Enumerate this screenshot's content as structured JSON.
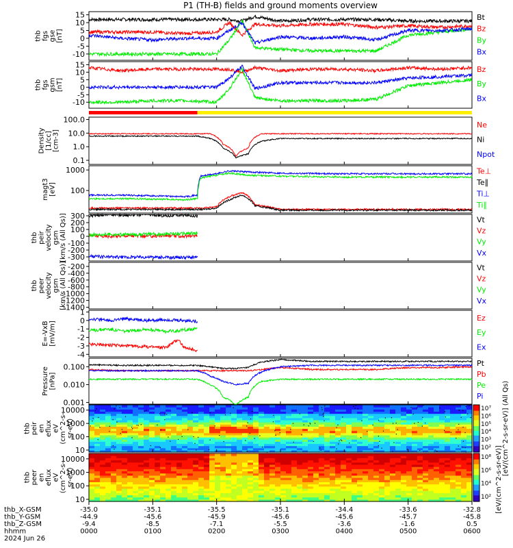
{
  "title": "P1 (TH-B) fields and ground moments overview",
  "colors": {
    "black": "#000000",
    "red": "#ff0000",
    "green": "#00ee00",
    "blue": "#0000ff",
    "yellow": "#ffee00"
  },
  "chart_data": [
    {
      "id": "fgs-gse",
      "type": "line",
      "ylabel": [
        "thb",
        "fgs",
        "gse",
        "[nT]"
      ],
      "yticks": [
        "15",
        "10",
        "5",
        "0",
        "-5",
        "-10"
      ],
      "ylim": [
        -14,
        17
      ],
      "log": false,
      "series": [
        {
          "name": "Bt",
          "color": "black",
          "x": [
            0,
            5,
            10,
            15,
            20,
            22,
            24,
            26,
            30,
            35,
            40,
            45,
            50,
            55,
            60
          ],
          "y": [
            12,
            12,
            12,
            12,
            12,
            12,
            11,
            14,
            11,
            12,
            12,
            12,
            11,
            11,
            11
          ]
        },
        {
          "name": "Bz",
          "color": "red",
          "x": [
            0,
            5,
            10,
            15,
            20,
            22,
            24,
            26,
            30,
            35,
            40,
            45,
            50,
            55,
            60
          ],
          "y": [
            4,
            4,
            4,
            3,
            4,
            10,
            2,
            9,
            8,
            9,
            9,
            7,
            8,
            7,
            8
          ]
        },
        {
          "name": "By",
          "color": "green",
          "x": [
            0,
            5,
            10,
            15,
            20,
            22,
            24,
            26,
            30,
            35,
            40,
            45,
            50,
            55,
            60
          ],
          "y": [
            -10,
            -10,
            -10,
            -10,
            -10,
            -1,
            11,
            -6,
            -7,
            -8,
            -8,
            -8,
            2,
            4,
            6
          ]
        },
        {
          "name": "Bx",
          "color": "blue",
          "x": [
            0,
            5,
            10,
            15,
            20,
            22,
            24,
            26,
            30,
            35,
            40,
            45,
            50,
            55,
            60
          ],
          "y": [
            2,
            0,
            -1,
            0,
            0,
            5,
            10,
            -3,
            1,
            0,
            1,
            -1,
            5,
            5,
            6
          ]
        }
      ]
    },
    {
      "id": "fgs-gsm",
      "type": "line",
      "ylabel": [
        "thb",
        "fgs",
        "gsm",
        "[nT]"
      ],
      "yticks": [
        "15",
        "10",
        "5",
        "0",
        "-5",
        "-10"
      ],
      "ylim": [
        -14,
        17
      ],
      "log": false,
      "series": [
        {
          "name": "Bz",
          "color": "red",
          "x": [
            0,
            5,
            10,
            15,
            20,
            22,
            24,
            26,
            30,
            35,
            40,
            45,
            50,
            55,
            60
          ],
          "y": [
            13,
            11,
            12,
            12,
            12,
            12,
            10,
            13,
            11,
            12,
            12,
            11,
            13,
            12,
            13
          ]
        },
        {
          "name": "By",
          "color": "green",
          "x": [
            0,
            5,
            10,
            15,
            20,
            22,
            24,
            26,
            30,
            35,
            40,
            45,
            50,
            55,
            60
          ],
          "y": [
            -10,
            -10,
            -9,
            -9,
            -10,
            -1,
            12,
            -7,
            -9,
            -9,
            -9,
            -8,
            1,
            3,
            5
          ]
        },
        {
          "name": "Bx",
          "color": "blue",
          "x": [
            0,
            5,
            10,
            15,
            20,
            22,
            24,
            26,
            30,
            35,
            40,
            45,
            50,
            55,
            60
          ],
          "y": [
            0,
            0,
            0,
            0,
            0,
            6,
            14,
            -1,
            3,
            3,
            3,
            3,
            6,
            7,
            8
          ]
        }
      ]
    },
    {
      "id": "density",
      "type": "line",
      "ylabel": [
        "Density",
        "[1/cc]",
        "[cm-3]"
      ],
      "yticks": [
        "100.0",
        "10.0",
        "1.0",
        "0.1"
      ],
      "ylim": [
        0.05,
        150
      ],
      "log": true,
      "series": [
        {
          "name": "Ne",
          "color": "red",
          "x": [
            0,
            5,
            10,
            15,
            17,
            19,
            21,
            23,
            25,
            27,
            30,
            35,
            40,
            45,
            50,
            55,
            60
          ],
          "y": [
            9,
            9,
            9,
            9,
            9,
            9,
            1.5,
            0.2,
            0.8,
            9,
            9,
            9,
            9,
            9,
            9,
            9,
            9
          ]
        },
        {
          "name": "Ni",
          "color": "black",
          "x": [
            0,
            5,
            10,
            15,
            17,
            19,
            21,
            23,
            25,
            27,
            30,
            35,
            40,
            45,
            50,
            55,
            60
          ],
          "y": [
            6,
            6,
            6,
            6,
            6,
            4,
            0.8,
            0.15,
            0.3,
            2.5,
            4,
            4,
            4,
            4,
            4,
            4,
            4
          ]
        },
        {
          "name": "Npot",
          "color": "blue",
          "x": [],
          "y": []
        }
      ]
    },
    {
      "id": "temperature",
      "type": "line",
      "ylabel": [
        "magt3",
        "[eV]"
      ],
      "yticks": [
        "1000",
        "100"
      ],
      "ylim": [
        8,
        1600
      ],
      "log": true,
      "series": [
        {
          "name": "Te⊥",
          "color": "red",
          "x": [
            0,
            10,
            18,
            20,
            22,
            24,
            26,
            30,
            40,
            50,
            60
          ],
          "y": [
            14,
            14,
            14,
            16,
            50,
            80,
            20,
            12,
            12,
            12,
            12
          ]
        },
        {
          "name": "Te∥",
          "color": "black",
          "x": [
            0,
            10,
            18,
            20,
            22,
            24,
            26,
            30,
            40,
            50,
            60
          ],
          "y": [
            12,
            12,
            12,
            14,
            35,
            60,
            18,
            11,
            11,
            11,
            11
          ]
        },
        {
          "name": "Ti⊥",
          "color": "blue",
          "x": [
            0,
            5,
            10,
            15,
            17,
            17.5,
            20,
            22,
            25,
            30,
            40,
            50,
            60
          ],
          "y": [
            60,
            60,
            55,
            50,
            60,
            500,
            650,
            900,
            800,
            700,
            650,
            650,
            650
          ]
        },
        {
          "name": "Ti∥",
          "color": "green",
          "x": [
            0,
            5,
            10,
            15,
            17,
            17.5,
            20,
            22,
            25,
            30,
            40,
            50,
            60
          ],
          "y": [
            40,
            40,
            38,
            35,
            40,
            400,
            550,
            700,
            550,
            500,
            450,
            450,
            450
          ]
        }
      ]
    },
    {
      "id": "ion-velocity",
      "type": "line",
      "ylabel": [
        "thb",
        "peir",
        "velocity",
        "gsm",
        "[km/s (All Qs)]"
      ],
      "yticks": [
        "300",
        "200",
        "100",
        "0",
        "-100",
        "-200",
        "-300"
      ],
      "ylim": [
        -360,
        320
      ],
      "log": false,
      "series": [
        {
          "name": "Vt",
          "color": "black",
          "x": [
            0,
            3,
            6,
            9,
            12,
            15,
            17
          ],
          "y": [
            300,
            320,
            310,
            320,
            300,
            310,
            300
          ]
        },
        {
          "name": "Vz",
          "color": "red",
          "x": [
            0,
            3,
            6,
            9,
            12,
            15,
            17
          ],
          "y": [
            10,
            0,
            10,
            0,
            10,
            0,
            10
          ]
        },
        {
          "name": "Vy",
          "color": "green",
          "x": [
            0,
            3,
            6,
            9,
            12,
            15,
            17
          ],
          "y": [
            20,
            30,
            25,
            30,
            35,
            40,
            45
          ]
        },
        {
          "name": "Vx",
          "color": "blue",
          "x": [
            0,
            3,
            6,
            9,
            12,
            15,
            17
          ],
          "y": [
            -290,
            -300,
            -305,
            -300,
            -310,
            -305,
            -305
          ]
        }
      ]
    },
    {
      "id": "electron-velocity",
      "type": "line",
      "ylabel": [
        "thb",
        "peer",
        "velocity",
        "gsm",
        "[km/s (All Qs)]"
      ],
      "yticks": [
        "-200",
        "-400",
        "-600",
        "-800",
        "-1000",
        "-1200",
        "-1400"
      ],
      "ylim": [
        -1450,
        -80
      ],
      "log": false,
      "series": [
        {
          "name": "Vt",
          "color": "black",
          "x": [],
          "y": []
        },
        {
          "name": "Vz",
          "color": "red",
          "x": [],
          "y": []
        },
        {
          "name": "Vy",
          "color": "green",
          "x": [],
          "y": []
        },
        {
          "name": "Vx",
          "color": "blue",
          "x": [],
          "y": []
        }
      ]
    },
    {
      "id": "efield",
      "type": "line",
      "ylabel": [
        "E=-VxB",
        "[mV/m]"
      ],
      "yticks": [
        "1",
        "0",
        "-1",
        "-2",
        "-3",
        "-4"
      ],
      "ylim": [
        -4.3,
        1.2
      ],
      "log": false,
      "series": [
        {
          "name": "Ez",
          "color": "red",
          "x": [
            0,
            3,
            6,
            9,
            12,
            14,
            15,
            17
          ],
          "y": [
            -2.8,
            -2.9,
            -3.0,
            -3.1,
            -3.2,
            -2.2,
            -3.3,
            -3.5
          ]
        },
        {
          "name": "Ey",
          "color": "green",
          "x": [
            0,
            3,
            6,
            9,
            12,
            14,
            15,
            17
          ],
          "y": [
            -1.2,
            -1.0,
            -1.3,
            -1.0,
            -1.3,
            -1.2,
            -1.1,
            -1.0
          ]
        },
        {
          "name": "Ex",
          "color": "blue",
          "x": [
            0,
            3,
            6,
            9,
            12,
            14,
            15,
            17
          ],
          "y": [
            0.2,
            0.0,
            0.2,
            0.0,
            0.1,
            0.0,
            0.0,
            -0.1
          ]
        }
      ]
    },
    {
      "id": "pressure",
      "type": "line",
      "ylabel": [
        "Pressure",
        "[nPa]"
      ],
      "yticks": [
        "0.100",
        "0.010",
        "0.001"
      ],
      "ylim": [
        0.0008,
        0.3
      ],
      "log": true,
      "series": [
        {
          "name": "Pt",
          "color": "black",
          "x": [
            0,
            5,
            10,
            15,
            17,
            19,
            21,
            23,
            25,
            27,
            30,
            35,
            40,
            45,
            50,
            55,
            60
          ],
          "y": [
            0.13,
            0.12,
            0.12,
            0.12,
            0.12,
            0.1,
            0.08,
            0.08,
            0.09,
            0.18,
            0.25,
            0.2,
            0.2,
            0.2,
            0.2,
            0.2,
            0.2
          ]
        },
        {
          "name": "Pb",
          "color": "red",
          "x": [
            0,
            5,
            10,
            15,
            17,
            19,
            21,
            23,
            25,
            27,
            30,
            35,
            40,
            45,
            50,
            55,
            60
          ],
          "y": [
            0.07,
            0.06,
            0.06,
            0.06,
            0.06,
            0.06,
            0.06,
            0.06,
            0.06,
            0.07,
            0.09,
            0.07,
            0.07,
            0.07,
            0.09,
            0.09,
            0.1
          ]
        },
        {
          "name": "Pe",
          "color": "green",
          "x": [
            0,
            5,
            10,
            15,
            17,
            19,
            21,
            23,
            25,
            27,
            30,
            35,
            40,
            45,
            50,
            55,
            60
          ],
          "y": [
            0.02,
            0.02,
            0.02,
            0.02,
            0.02,
            0.01,
            0.002,
            0.0007,
            0.002,
            0.015,
            0.02,
            0.02,
            0.02,
            0.02,
            0.02,
            0.02,
            0.02
          ]
        },
        {
          "name": "Pi",
          "color": "blue",
          "x": [
            0,
            5,
            10,
            15,
            17,
            19,
            21,
            23,
            25,
            27,
            30,
            35,
            40,
            45,
            50,
            55,
            60
          ],
          "y": [
            0.06,
            0.06,
            0.06,
            0.06,
            0.06,
            0.03,
            0.015,
            0.01,
            0.012,
            0.05,
            0.1,
            0.12,
            0.12,
            0.12,
            0.12,
            0.12,
            0.12
          ]
        }
      ]
    },
    {
      "id": "ion-spectrogram",
      "type": "heatmap",
      "ylabel": [
        "thb",
        "peir",
        "en",
        "eflux",
        "eV",
        "(cm^2-s-",
        "sr-eV)"
      ],
      "yticks": [
        "10000",
        "1000",
        "100",
        "10"
      ],
      "ylim": [
        7,
        25000
      ],
      "log": true,
      "colorbar_label": "[eV/(cm^2-s-sr-eV)] (All Qs)",
      "colorbar_ticks": [
        "10^7",
        "10^6",
        "10^5",
        "10^4",
        "10^3",
        "10^2"
      ]
    },
    {
      "id": "electron-spectrogram",
      "type": "heatmap",
      "ylabel": [
        "thb",
        "peer",
        "en",
        "eflux",
        "eV",
        "(cm^2-s-",
        "sr-eV)"
      ],
      "yticks": [
        "10000",
        "1000",
        "100",
        "10"
      ],
      "ylim": [
        7,
        25000
      ],
      "log": true,
      "colorbar_label": "[eV/(cm^2-s-sr-eV)]",
      "colorbar_ticks": [
        "10^8",
        "10^6",
        "10^4",
        "10^2"
      ]
    }
  ],
  "mode_bar": {
    "segments": [
      {
        "start": 0,
        "end": 17,
        "color": "red"
      },
      {
        "start": 17,
        "end": 60,
        "color": "yellow"
      }
    ]
  },
  "x_axis": {
    "unit": "minutes after 2024 Jun 26 0000",
    "range": [
      0,
      60
    ],
    "tick_positions": [
      0,
      10,
      20,
      30,
      40,
      50,
      60
    ],
    "rows": [
      {
        "label": "thb_X-GSM",
        "values": [
          "-35.0",
          "-35.1",
          "-35.5",
          "-35.1",
          "-34.4",
          "-33.6",
          "-32.8"
        ]
      },
      {
        "label": "thb_Y-GSM",
        "values": [
          "-44.9",
          "-45.6",
          "-45.9",
          "-45.6",
          "-45.6",
          "-45.7",
          "-45.8"
        ]
      },
      {
        "label": "thb_Z-GSM",
        "values": [
          "-9.4",
          "-8.5",
          "-7.1",
          "-5.5",
          "-3.6",
          "-1.6",
          "0.5"
        ]
      },
      {
        "label": "hhmm",
        "values": [
          "0000",
          "0100",
          "0200",
          "0300",
          "0400",
          "0500",
          "0600"
        ]
      }
    ],
    "date": "2024 Jun 26"
  }
}
